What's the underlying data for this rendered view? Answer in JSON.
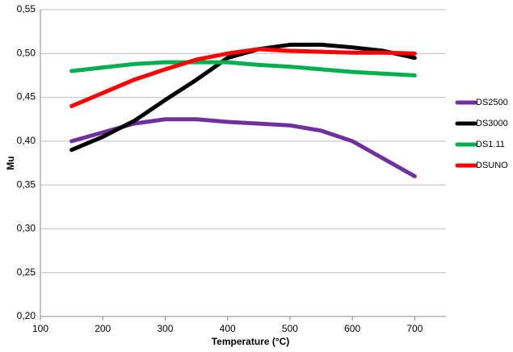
{
  "chart_data": {
    "type": "line",
    "x_label": "Temperature (°C)",
    "y_label": "Mu",
    "x": [
      150,
      200,
      250,
      300,
      350,
      400,
      450,
      500,
      550,
      600,
      650,
      700
    ],
    "series": [
      {
        "name": "DS2500",
        "color": "#7030a0",
        "values": [
          0.4,
          0.41,
          0.42,
          0.425,
          0.425,
          0.422,
          0.42,
          0.418,
          0.412,
          0.4,
          0.38,
          0.36
        ]
      },
      {
        "name": "DS3000",
        "color": "#000000",
        "values": [
          0.39,
          0.405,
          0.423,
          0.447,
          0.47,
          0.495,
          0.505,
          0.51,
          0.51,
          0.507,
          0.503,
          0.495
        ]
      },
      {
        "name": "DS1.11",
        "color": "#00b050",
        "values": [
          0.48,
          0.484,
          0.488,
          0.49,
          0.49,
          0.49,
          0.487,
          0.485,
          0.482,
          0.479,
          0.477,
          0.475
        ]
      },
      {
        "name": "DSUNO",
        "color": "#ff0000",
        "values": [
          0.44,
          0.455,
          0.47,
          0.482,
          0.493,
          0.5,
          0.505,
          0.503,
          0.502,
          0.501,
          0.501,
          0.5
        ]
      }
    ],
    "xlim": [
      100,
      750
    ],
    "xticks": [
      100,
      200,
      300,
      400,
      500,
      600,
      700
    ],
    "ylim": [
      0.2,
      0.55
    ],
    "yticks": [
      {
        "value": 0.2,
        "label": "0,20"
      },
      {
        "value": 0.25,
        "label": "0,25"
      },
      {
        "value": 0.3,
        "label": "0,30"
      },
      {
        "value": 0.35,
        "label": "0,35"
      },
      {
        "value": 0.4,
        "label": "0,40"
      },
      {
        "value": 0.45,
        "label": "0,45"
      },
      {
        "value": 0.5,
        "label": "0,50"
      },
      {
        "value": 0.55,
        "label": "0,55"
      }
    ],
    "grid": true,
    "legend": "right"
  }
}
